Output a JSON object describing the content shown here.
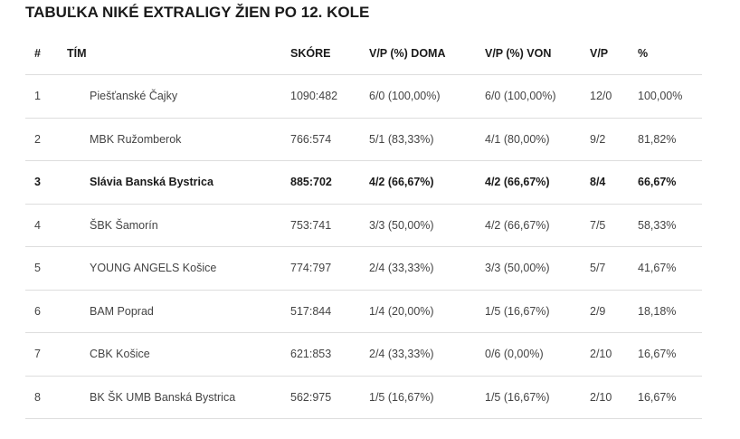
{
  "title": "TABUĽKA NIKÉ EXTRALIGY ŽIEN PO 12. KOLE",
  "headers": {
    "rank": "#",
    "team": "TÍM",
    "score": "SKÓRE",
    "home": "V/P (%) DOMA",
    "away": "V/P (%) VON",
    "wl": "V/P",
    "pct": "%"
  },
  "rows": [
    {
      "rank": "1",
      "team": "Piešťanské Čajky",
      "score": "1090:482",
      "home": "6/0 (100,00%)",
      "away": "6/0 (100,00%)",
      "wl": "12/0",
      "pct": "100,00%",
      "highlight": false
    },
    {
      "rank": "2",
      "team": "MBK Ružomberok",
      "score": "766:574",
      "home": "5/1 (83,33%)",
      "away": "4/1 (80,00%)",
      "wl": "9/2",
      "pct": "81,82%",
      "highlight": false
    },
    {
      "rank": "3",
      "team": "Slávia Banská Bystrica",
      "score": "885:702",
      "home": "4/2 (66,67%)",
      "away": "4/2 (66,67%)",
      "wl": "8/4",
      "pct": "66,67%",
      "highlight": true
    },
    {
      "rank": "4",
      "team": "ŠBK Šamorín",
      "score": "753:741",
      "home": "3/3 (50,00%)",
      "away": "4/2 (66,67%)",
      "wl": "7/5",
      "pct": "58,33%",
      "highlight": false
    },
    {
      "rank": "5",
      "team": "YOUNG ANGELS Košice",
      "score": "774:797",
      "home": "2/4 (33,33%)",
      "away": "3/3 (50,00%)",
      "wl": "5/7",
      "pct": "41,67%",
      "highlight": false
    },
    {
      "rank": "6",
      "team": "BAM Poprad",
      "score": "517:844",
      "home": "1/4 (20,00%)",
      "away": "1/5 (16,67%)",
      "wl": "2/9",
      "pct": "18,18%",
      "highlight": false
    },
    {
      "rank": "7",
      "team": "CBK Košice",
      "score": "621:853",
      "home": "2/4 (33,33%)",
      "away": "0/6 (0,00%)",
      "wl": "2/10",
      "pct": "16,67%",
      "highlight": false
    },
    {
      "rank": "8",
      "team": "BK ŠK UMB Banská Bystrica",
      "score": "562:975",
      "home": "1/5 (16,67%)",
      "away": "1/5 (16,67%)",
      "wl": "2/10",
      "pct": "16,67%",
      "highlight": false
    }
  ]
}
